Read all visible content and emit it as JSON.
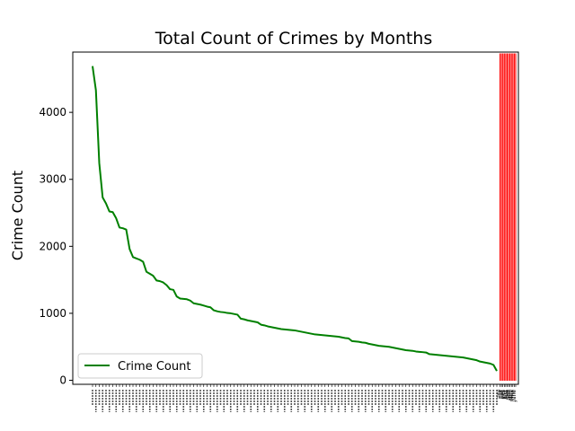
{
  "chart_data": {
    "type": "line",
    "title": "Total Count of Crimes by Months",
    "xlabel": "",
    "ylabel": "Crime Count",
    "yticks": [
      0,
      1000,
      2000,
      3000,
      4000
    ],
    "ylim": [
      -60,
      4900
    ],
    "grid": false,
    "legend_position": "lower-left",
    "line_color": "#008000",
    "bar_color": "#ff0000",
    "series": [
      {
        "name": "Crime Count",
        "values": [
          4690,
          4330,
          3240,
          2730,
          2640,
          2520,
          2510,
          2420,
          2280,
          2270,
          2250,
          1960,
          1840,
          1820,
          1800,
          1770,
          1620,
          1590,
          1560,
          1490,
          1480,
          1460,
          1420,
          1360,
          1350,
          1250,
          1220,
          1215,
          1210,
          1190,
          1150,
          1140,
          1130,
          1115,
          1100,
          1090,
          1045,
          1030,
          1020,
          1015,
          1005,
          1000,
          990,
          980,
          920,
          910,
          895,
          885,
          875,
          865,
          830,
          820,
          805,
          795,
          785,
          775,
          765,
          760,
          755,
          750,
          745,
          735,
          725,
          715,
          705,
          695,
          685,
          680,
          675,
          670,
          665,
          660,
          655,
          650,
          640,
          630,
          625,
          585,
          580,
          575,
          565,
          560,
          545,
          535,
          525,
          515,
          510,
          505,
          500,
          490,
          480,
          470,
          460,
          450,
          445,
          440,
          430,
          425,
          420,
          415,
          390,
          385,
          380,
          375,
          370,
          365,
          360,
          355,
          350,
          345,
          340,
          330,
          320,
          310,
          300,
          280,
          270,
          260,
          250,
          230,
          140
        ]
      }
    ],
    "bars": [
      {
        "value": 4880
      },
      {
        "value": 4880
      },
      {
        "value": 4880
      },
      {
        "value": 4880
      },
      {
        "value": 4880
      },
      {
        "value": 4880
      },
      {
        "value": 4880
      },
      {
        "value": 4880
      },
      {
        "value": 4880
      },
      {
        "value": 4880
      },
      {
        "value": 4880
      },
      {
        "value": 4880
      }
    ],
    "end_labels": [
      "ary",
      "ly",
      "ber",
      "ber",
      "July",
      "ust",
      "ber",
      "une",
      "pril",
      "May",
      "June",
      "June"
    ]
  }
}
